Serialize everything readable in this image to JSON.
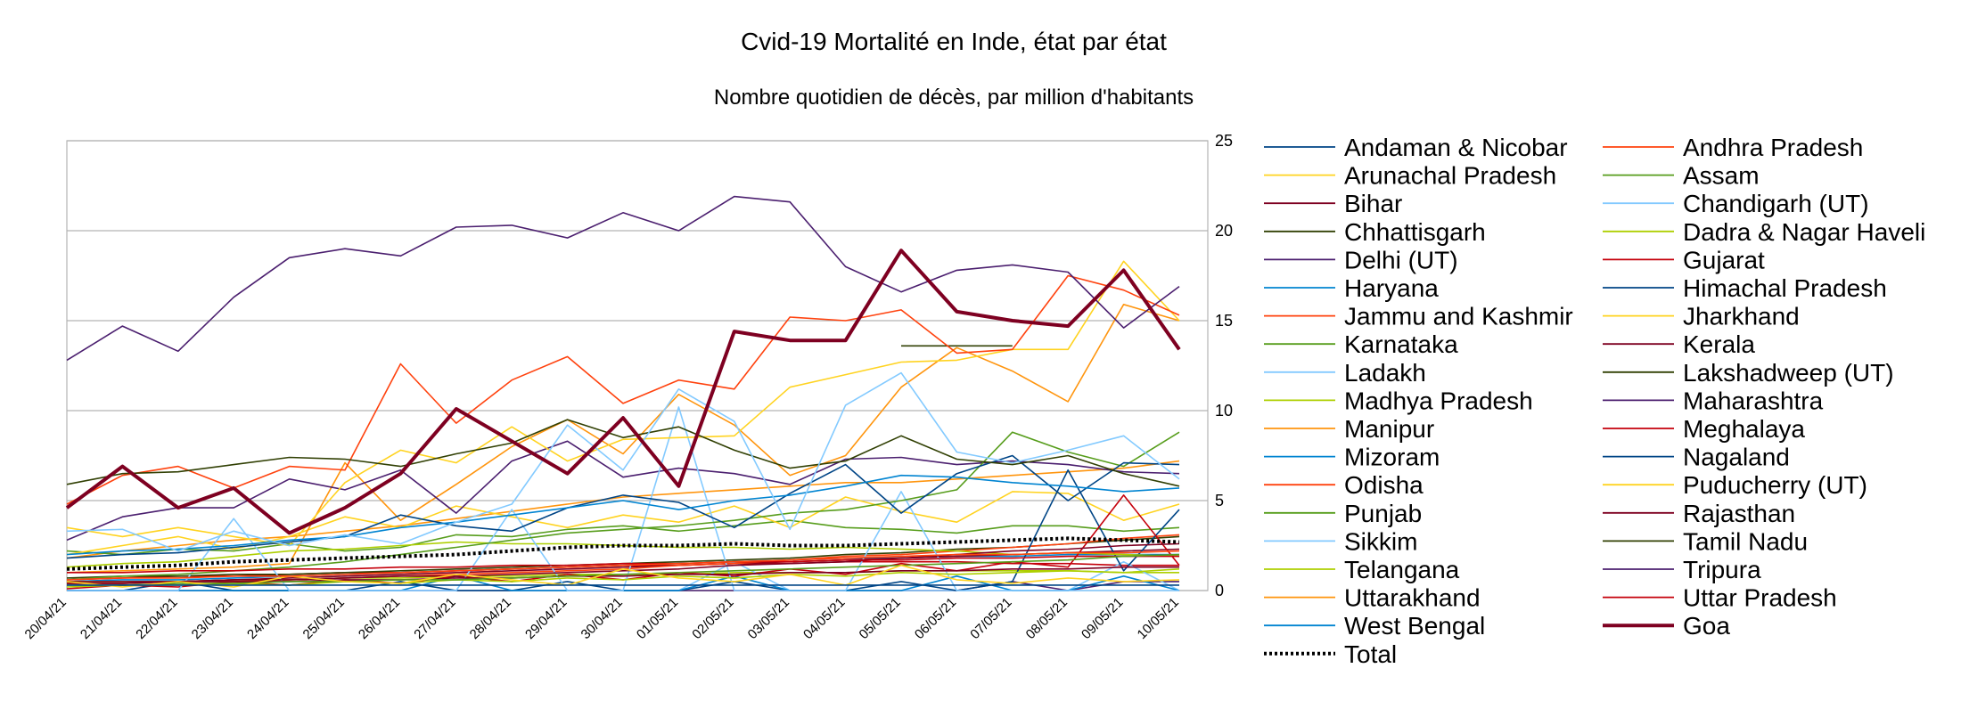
{
  "chart_data": {
    "type": "line",
    "title": "Cvid-19 Mortalité en Inde, état par état",
    "subtitle": "Nombre quotidien de décès, par million d'habitants",
    "xlabel": "",
    "ylabel": "",
    "y_axis_side": "right",
    "ylim": [
      0,
      25
    ],
    "yticks": [
      0,
      5,
      10,
      15,
      20,
      25
    ],
    "grid": "horizontal",
    "legend_placement": "right",
    "categories": [
      "20/04/21",
      "21/04/21",
      "22/04/21",
      "23/04/21",
      "24/04/21",
      "25/04/21",
      "26/04/21",
      "27/04/21",
      "28/04/21",
      "29/04/21",
      "30/04/21",
      "01/05/21",
      "02/05/21",
      "03/05/21",
      "04/05/21",
      "05/05/21",
      "06/05/21",
      "07/05/21",
      "08/05/21",
      "09/05/21",
      "10/05/21"
    ],
    "series": [
      {
        "name": "Andaman & Nicobar",
        "color": "#004586",
        "values": [
          0.3,
          0.3,
          0.3,
          0.3,
          0.3,
          0.3,
          0.3,
          0.3,
          0.3,
          0.3,
          0.3,
          0.3,
          0.3,
          0.3,
          0.3,
          0.3,
          0.3,
          0.3,
          0.3,
          0.3,
          0.3
        ]
      },
      {
        "name": "Andhra Pradesh",
        "color": "#ff420e",
        "values": [
          0.6,
          0.7,
          0.7,
          0.8,
          0.8,
          0.9,
          1.0,
          1.1,
          1.2,
          1.3,
          1.4,
          1.5,
          1.6,
          1.7,
          1.8,
          1.9,
          2.0,
          2.0,
          2.1,
          2.1,
          2.2
        ]
      },
      {
        "name": "Arunachal Pradesh",
        "color": "#ffd320",
        "values": [
          0.5,
          0.2,
          0.5,
          0.2,
          0.8,
          0.5,
          0.4,
          0.9,
          0.6,
          0.3,
          1.2,
          0.7,
          0.5,
          0.9,
          0.3,
          1.4,
          0.6,
          0.4,
          0.7,
          0.5,
          0.6
        ]
      },
      {
        "name": "Assam",
        "color": "#579d1c",
        "values": [
          0.3,
          0.3,
          0.4,
          0.4,
          0.5,
          0.5,
          0.6,
          0.6,
          0.7,
          0.8,
          0.9,
          1.0,
          1.1,
          1.2,
          1.3,
          1.4,
          1.5,
          1.6,
          1.7,
          1.9,
          2.0
        ]
      },
      {
        "name": "Bihar",
        "color": "#7e0021",
        "values": [
          0.4,
          0.4,
          0.5,
          0.5,
          0.5,
          0.6,
          0.6,
          0.7,
          0.7,
          0.8,
          0.8,
          0.9,
          0.9,
          1.0,
          1.0,
          1.1,
          1.1,
          1.2,
          1.2,
          1.3,
          1.3
        ]
      },
      {
        "name": "Chandigarh (UT)",
        "color": "#83caff",
        "values": [
          3.3,
          3.4,
          2.2,
          3.3,
          2.5,
          3.1,
          2.6,
          3.8,
          4.8,
          9.2,
          6.7,
          11.2,
          9.4,
          3.4,
          10.3,
          12.1,
          7.7,
          7.1,
          7.8,
          8.6,
          6.2
        ]
      },
      {
        "name": "Chhattisgarh",
        "color": "#314004",
        "values": [
          5.9,
          6.5,
          6.6,
          7.0,
          7.4,
          7.3,
          6.9,
          7.6,
          8.2,
          9.5,
          8.5,
          9.1,
          7.8,
          6.8,
          7.2,
          8.6,
          7.3,
          7.0,
          7.5,
          6.5,
          5.8
        ]
      },
      {
        "name": "Dadra & Nagar Haveli",
        "color": "#aecf00",
        "values": [
          0.2,
          0.3,
          0.3,
          0.4,
          0.3,
          0.5,
          0.4,
          0.6,
          0.5,
          0.7,
          0.6,
          0.8,
          0.7,
          0.9,
          0.8,
          1.0,
          0.9,
          1.0,
          1.1,
          1.0,
          1.2
        ]
      },
      {
        "name": "Delhi (UT)",
        "color": "#4b1f6f",
        "values": [
          12.8,
          14.7,
          13.3,
          16.3,
          18.5,
          19.0,
          18.6,
          20.2,
          20.3,
          19.6,
          21.0,
          20.0,
          21.9,
          21.6,
          18.0,
          16.6,
          17.8,
          18.1,
          17.7,
          14.6,
          16.9
        ]
      },
      {
        "name": "Gujarat",
        "color": "#c5000b",
        "values": [
          1.0,
          1.0,
          1.1,
          1.1,
          1.2,
          1.2,
          1.3,
          1.3,
          1.4,
          1.4,
          1.5,
          1.5,
          1.6,
          1.6,
          1.7,
          1.7,
          1.8,
          1.8,
          1.9,
          1.9,
          1.9
        ]
      },
      {
        "name": "Haryana",
        "color": "#0084d1",
        "values": [
          2.0,
          2.2,
          2.3,
          2.5,
          2.8,
          3.0,
          3.5,
          3.8,
          4.2,
          4.6,
          5.0,
          4.5,
          5.0,
          5.3,
          5.8,
          6.4,
          6.3,
          6.0,
          5.8,
          5.5,
          5.7
        ]
      },
      {
        "name": "Himachal Pradesh",
        "color": "#004586",
        "values": [
          1.8,
          2.0,
          2.1,
          2.4,
          2.7,
          3.0,
          4.2,
          3.6,
          3.3,
          4.6,
          5.3,
          4.9,
          3.5,
          5.4,
          7.0,
          4.3,
          6.5,
          7.5,
          5.0,
          7.1,
          7.0
        ]
      },
      {
        "name": "Jammu and Kashmir",
        "color": "#ff420e",
        "values": [
          4.8,
          6.4,
          6.9,
          5.7,
          6.9,
          6.7,
          12.6,
          9.3,
          11.7,
          13.0,
          10.4,
          11.7,
          11.2,
          15.2,
          15.0,
          15.6,
          13.2,
          13.4,
          17.5,
          16.7,
          15.3
        ]
      },
      {
        "name": "Jharkhand",
        "color": "#ffd320",
        "values": [
          3.5,
          3.0,
          3.5,
          3.0,
          2.5,
          6.0,
          7.8,
          7.1,
          9.1,
          7.2,
          8.4,
          8.5,
          8.6,
          11.3,
          12.0,
          12.7,
          12.8,
          13.4,
          13.4,
          18.3,
          15.0
        ]
      },
      {
        "name": "Karnataka",
        "color": "#579d1c",
        "values": [
          0.6,
          0.8,
          0.9,
          1.1,
          1.3,
          1.6,
          2.0,
          2.4,
          2.8,
          3.2,
          3.4,
          3.6,
          3.9,
          4.3,
          4.5,
          5.0,
          5.6,
          8.8,
          7.7,
          6.9,
          8.8
        ]
      },
      {
        "name": "Kerala",
        "color": "#7e0021",
        "values": [
          0.5,
          0.5,
          0.5,
          0.6,
          0.6,
          0.7,
          0.8,
          0.8,
          0.9,
          1.0,
          1.1,
          1.2,
          1.4,
          1.5,
          1.6,
          1.8,
          2.0,
          2.2,
          2.3,
          2.5,
          2.6
        ]
      },
      {
        "name": "Ladakh",
        "color": "#83caff",
        "values": [
          0.0,
          0.0,
          0.0,
          4.0,
          0.0,
          0.0,
          0.0,
          0.0,
          4.5,
          0.0,
          0.0,
          10.2,
          0.0,
          0.0,
          0.0,
          5.5,
          0.0,
          0.0,
          0.0,
          0.0,
          0.0
        ]
      },
      {
        "name": "Lakshadweep (UT)",
        "color": "#314004",
        "values": [
          null,
          null,
          null,
          null,
          null,
          null,
          null,
          null,
          null,
          null,
          null,
          null,
          null,
          null,
          null,
          13.6,
          13.6,
          13.6,
          null,
          null,
          null
        ]
      },
      {
        "name": "Madhya Pradesh",
        "color": "#aecf00",
        "values": [
          1.3,
          1.5,
          1.6,
          1.9,
          2.2,
          2.3,
          2.5,
          2.7,
          2.6,
          2.6,
          2.5,
          2.4,
          2.4,
          2.3,
          2.4,
          2.3,
          2.2,
          2.0,
          2.1,
          2.0,
          1.9
        ]
      },
      {
        "name": "Maharashtra",
        "color": "#4b1f6f",
        "values": [
          2.8,
          4.1,
          4.6,
          4.6,
          6.2,
          5.6,
          6.7,
          4.3,
          7.2,
          8.3,
          6.3,
          6.8,
          6.5,
          5.9,
          7.3,
          7.4,
          7.0,
          7.2,
          7.0,
          6.6,
          6.5
        ]
      },
      {
        "name": "Manipur",
        "color": "#ff950e",
        "values": [
          1.0,
          1.1,
          1.2,
          1.3,
          1.5,
          7.1,
          3.9,
          5.9,
          8.0,
          9.5,
          7.6,
          10.9,
          9.2,
          6.4,
          7.5,
          11.3,
          13.5,
          12.2,
          10.5,
          15.9,
          15.0
        ]
      },
      {
        "name": "Meghalaya",
        "color": "#c5000b",
        "values": [
          0.1,
          0.3,
          0.2,
          0.5,
          0.3,
          0.6,
          0.4,
          0.8,
          0.5,
          0.9,
          0.6,
          1.0,
          0.8,
          1.2,
          0.9,
          1.5,
          1.1,
          1.6,
          1.3,
          5.3,
          1.4
        ]
      },
      {
        "name": "Mizoram",
        "color": "#0084d1",
        "values": [
          0.0,
          0.0,
          0.0,
          0.0,
          0.0,
          0.0,
          0.0,
          0.8,
          0.0,
          0.0,
          0.0,
          0.0,
          0.8,
          0.0,
          0.0,
          0.0,
          0.8,
          0.0,
          0.0,
          0.8,
          0.0
        ]
      },
      {
        "name": "Nagaland",
        "color": "#004586",
        "values": [
          0.0,
          0.0,
          0.5,
          0.0,
          0.0,
          0.0,
          0.5,
          0.0,
          0.0,
          0.5,
          0.0,
          0.0,
          0.5,
          0.0,
          0.0,
          0.5,
          0.0,
          0.5,
          6.7,
          1.1,
          4.5
        ]
      },
      {
        "name": "Odisha",
        "color": "#ff420e",
        "values": [
          0.4,
          0.4,
          0.5,
          0.5,
          0.6,
          0.7,
          0.8,
          0.9,
          1.0,
          1.1,
          1.2,
          1.4,
          1.5,
          1.7,
          1.9,
          2.0,
          2.2,
          2.4,
          2.6,
          2.9,
          3.1
        ]
      },
      {
        "name": "Puducherry (UT)",
        "color": "#ffd320",
        "values": [
          2.0,
          2.5,
          3.0,
          2.3,
          3.0,
          4.1,
          3.5,
          4.7,
          4.1,
          3.5,
          4.2,
          3.8,
          4.7,
          3.5,
          5.2,
          4.4,
          3.8,
          5.5,
          5.4,
          3.9,
          4.8
        ]
      },
      {
        "name": "Punjab",
        "color": "#579d1c",
        "values": [
          2.2,
          2.0,
          2.3,
          2.2,
          2.6,
          2.2,
          2.4,
          3.1,
          3.0,
          3.4,
          3.6,
          3.3,
          3.6,
          3.9,
          3.5,
          3.4,
          3.2,
          3.6,
          3.6,
          3.3,
          3.5
        ]
      },
      {
        "name": "Rajasthan",
        "color": "#7e0021",
        "values": [
          0.4,
          0.4,
          0.5,
          0.6,
          0.7,
          0.8,
          0.9,
          1.0,
          1.1,
          1.2,
          1.3,
          1.4,
          1.5,
          1.6,
          1.7,
          1.8,
          1.9,
          2.0,
          2.1,
          2.2,
          2.3
        ]
      },
      {
        "name": "Sikkim",
        "color": "#83caff",
        "values": [
          0.0,
          0.0,
          0.0,
          0.0,
          0.0,
          0.0,
          0.0,
          0.0,
          0.0,
          0.0,
          0.0,
          0.0,
          1.6,
          0.0,
          0.0,
          0.0,
          0.0,
          0.0,
          0.0,
          1.6,
          0.0
        ]
      },
      {
        "name": "Tamil Nadu",
        "color": "#314004",
        "values": [
          0.7,
          0.8,
          0.8,
          0.9,
          0.9,
          1.0,
          1.1,
          1.2,
          1.3,
          1.4,
          1.5,
          1.6,
          1.7,
          1.8,
          2.0,
          2.1,
          2.3,
          2.4,
          2.6,
          2.8,
          3.0
        ]
      },
      {
        "name": "Telangana",
        "color": "#aecf00",
        "values": [
          0.5,
          0.5,
          0.5,
          0.6,
          0.6,
          0.7,
          0.7,
          0.8,
          0.8,
          0.9,
          0.9,
          0.9,
          1.0,
          1.0,
          1.0,
          1.1,
          1.1,
          1.1,
          1.1,
          1.0,
          1.0
        ]
      },
      {
        "name": "Tripura",
        "color": "#4b1f6f",
        "values": [
          0.0,
          0.0,
          0.0,
          0.0,
          0.0,
          0.0,
          0.0,
          0.0,
          0.0,
          0.0,
          0.0,
          0.0,
          0.0,
          0.0,
          0.0,
          0.0,
          0.0,
          0.5,
          0.0,
          0.5,
          0.5
        ]
      },
      {
        "name": "Uttarakhand",
        "color": "#ff950e",
        "values": [
          1.8,
          2.2,
          2.5,
          2.8,
          3.0,
          3.3,
          3.6,
          4.0,
          4.4,
          4.8,
          5.2,
          5.4,
          5.6,
          5.8,
          6.0,
          6.0,
          6.2,
          6.4,
          6.6,
          6.8,
          7.2
        ]
      },
      {
        "name": "Uttar Pradesh",
        "color": "#c5000b",
        "values": [
          0.6,
          0.7,
          0.8,
          0.8,
          0.9,
          1.0,
          1.0,
          1.1,
          1.2,
          1.3,
          1.4,
          1.4,
          1.5,
          1.5,
          1.6,
          1.6,
          1.6,
          1.5,
          1.5,
          1.4,
          1.4
        ]
      },
      {
        "name": "West Bengal",
        "color": "#0084d1",
        "values": [
          0.5,
          0.6,
          0.6,
          0.7,
          0.8,
          0.9,
          1.0,
          1.1,
          1.2,
          1.3,
          1.4,
          1.5,
          1.6,
          1.7,
          1.8,
          1.8,
          1.9,
          1.9,
          2.0,
          2.0,
          2.0
        ]
      },
      {
        "name": "Goa",
        "color": "#7e0021",
        "values": [
          4.6,
          6.9,
          4.6,
          5.7,
          3.2,
          4.6,
          6.5,
          10.1,
          8.3,
          6.5,
          9.6,
          5.8,
          14.4,
          13.9,
          13.9,
          18.9,
          15.5,
          15.0,
          14.7,
          17.8,
          13.4
        ]
      },
      {
        "name": "Total",
        "color": "#000000",
        "values": [
          1.2,
          1.3,
          1.4,
          1.6,
          1.7,
          1.8,
          1.9,
          2.0,
          2.2,
          2.4,
          2.5,
          2.5,
          2.6,
          2.5,
          2.5,
          2.6,
          2.7,
          2.8,
          2.9,
          2.8,
          2.7
        ]
      }
    ]
  }
}
